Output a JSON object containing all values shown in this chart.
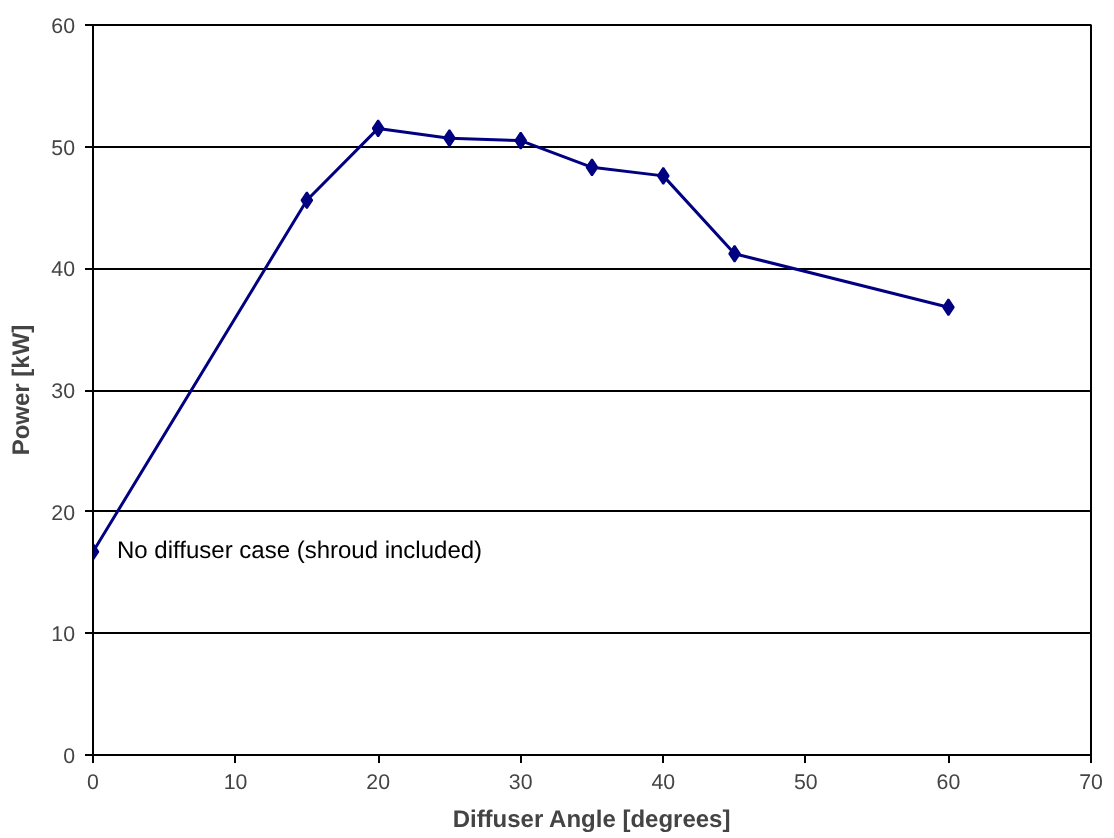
{
  "chart_data": {
    "type": "line",
    "xlabel": "Diffuser Angle [degrees]",
    "ylabel": "Power [kW]",
    "x": [
      0,
      15,
      20,
      25,
      30,
      35,
      40,
      45,
      60
    ],
    "series": [
      {
        "color": "#000080",
        "values": [
          16.7,
          45.6,
          51.5,
          50.7,
          50.5,
          48.3,
          47.6,
          41.2,
          36.8
        ]
      }
    ],
    "xlim": [
      0,
      70
    ],
    "ylim": [
      0,
      60
    ],
    "xticks": [
      0,
      10,
      20,
      30,
      40,
      50,
      60,
      70
    ],
    "yticks": [
      0,
      10,
      20,
      30,
      40,
      50,
      60
    ],
    "grid": "y",
    "marker": "diamond",
    "line_style": "solid",
    "annotations": [
      {
        "text": "No diffuser case (shroud included)",
        "x": 0,
        "y": 16.7
      }
    ]
  }
}
